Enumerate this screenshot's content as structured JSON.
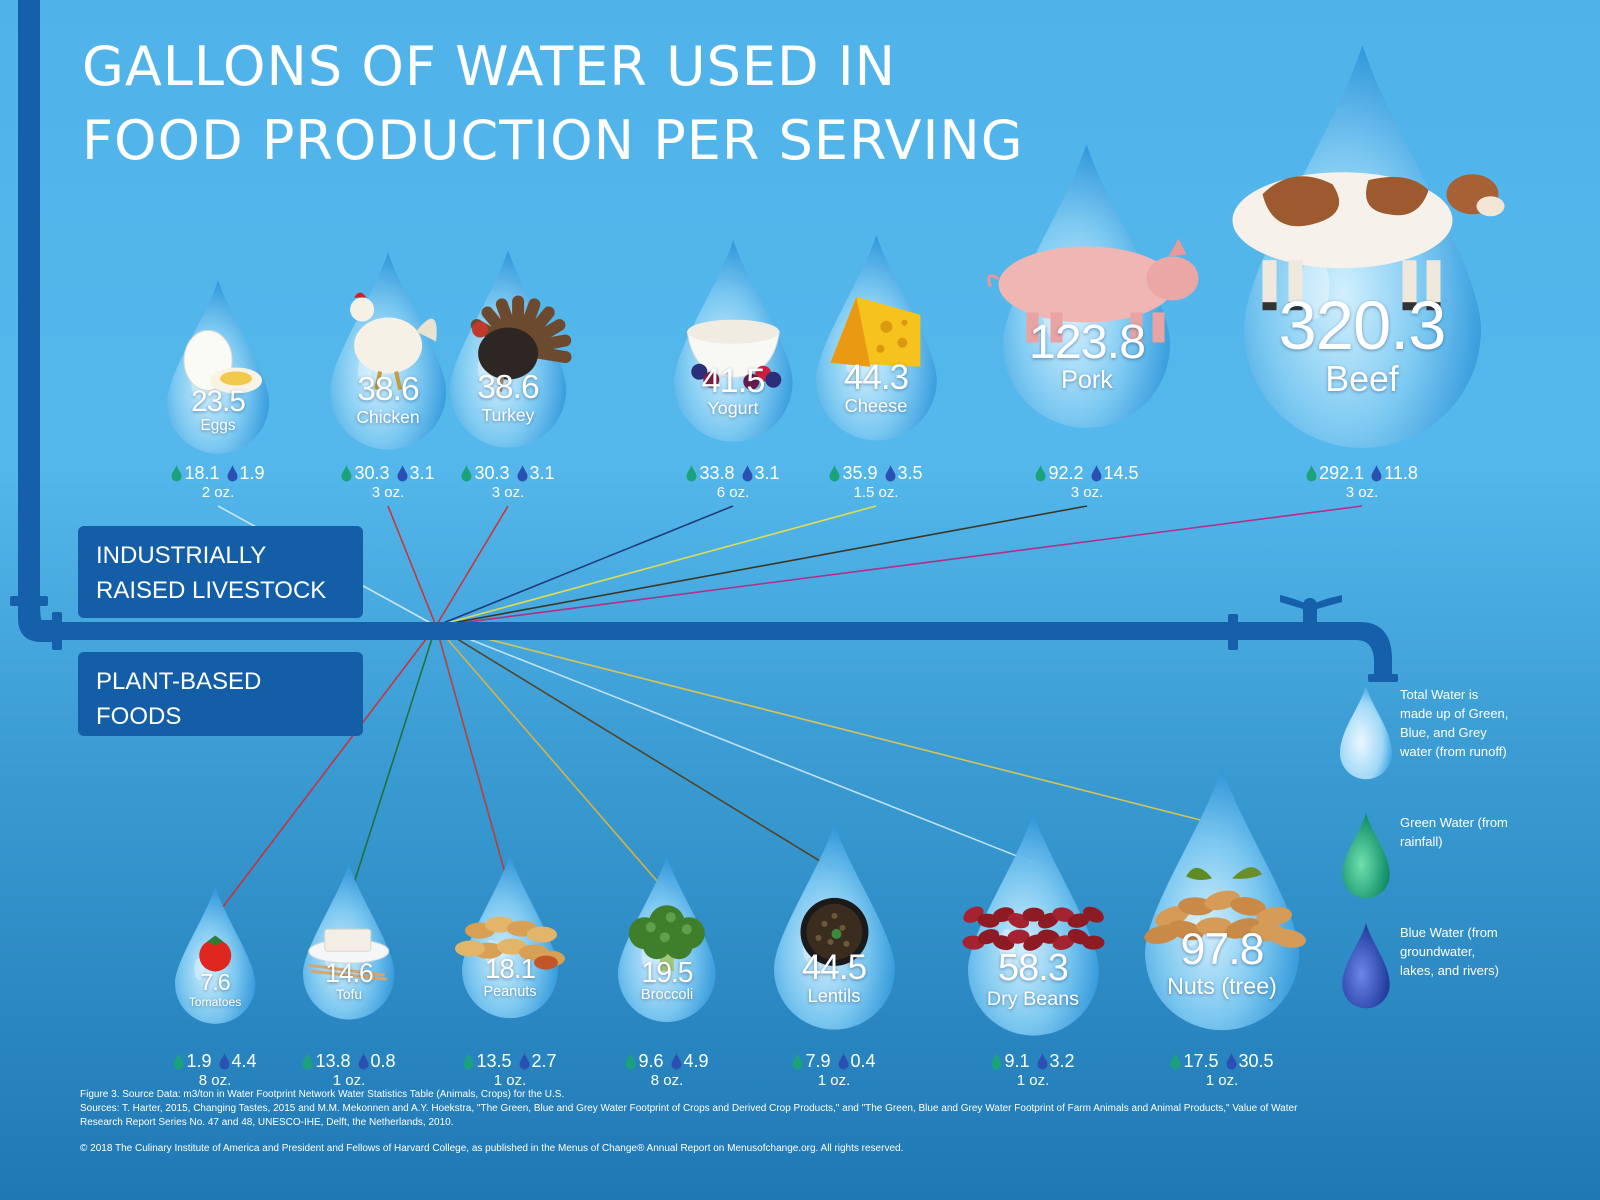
{
  "title": {
    "line1": "GALLONS OF WATER USED IN",
    "line2": "FOOD PRODUCTION PER SERVING"
  },
  "categories": {
    "livestock": {
      "line1": "INDUSTRIALLY",
      "line2": "RAISED LIVESTOCK"
    },
    "plants": {
      "line1": "PLANT-BASED",
      "line2": "FOODS"
    }
  },
  "legend": {
    "total": "Total Water is made up of Green, Blue, and Grey water (from runoff)",
    "green": "Green Water (from rainfall)",
    "blue": "Blue Water (from groundwater, lakes, and rivers)"
  },
  "colors": {
    "background_top": "#4fb3ea",
    "background_bottom": "#1f78b4",
    "pipe": "#1660ab",
    "green_water": "#1aa37a",
    "blue_water": "#2c4fb3"
  },
  "icons": {
    "green_drop": "green-drop-icon",
    "blue_drop": "blue-drop-icon",
    "total_drop": "water-drop-icon",
    "faucet": "faucet-icon"
  },
  "footer": {
    "line1": "Figure 3. Source Data: m3/ton in Water Footprint Network Water Statistics Table (Animals, Crops) for the U.S.",
    "line2": "Sources:  T. Harter, 2015, Changing Tastes, 2015 and M.M. Mekonnen and A.Y. Hoekstra, \"The Green, Blue and Grey Water Footprint of Crops and Derived Crop Products,\" and \"The Green, Blue and Grey Water Footprint of Farm Animals and Animal Products,\" Value of Water",
    "line3": "Research Report Series No. 47 and 48, UNESCO-IHE, Delft, the Netherlands, 2010.",
    "line4": "© 2018 The Culinary Institute of America and President and Fellows of Harvard College, as published in the Menus of Change® Annual Report on Menusofchange.org. All rights reserved."
  },
  "chart_data": {
    "type": "bubble",
    "units": "gallons per serving",
    "groups": [
      {
        "name": "INDUSTRIALLY RAISED LIVESTOCK",
        "items": [
          {
            "food": "Eggs",
            "total": "23.5",
            "green": "18.1",
            "blue": "1.9",
            "serving": "2 oz.",
            "picture": "egg"
          },
          {
            "food": "Chicken",
            "total": "38.6",
            "green": "30.3",
            "blue": "3.1",
            "serving": "3 oz.",
            "picture": "chicken"
          },
          {
            "food": "Turkey",
            "total": "38.6",
            "green": "30.3",
            "blue": "3.1",
            "serving": "3 oz.",
            "picture": "turkey"
          },
          {
            "food": "Yogurt",
            "total": "41.5",
            "green": "33.8",
            "blue": "3.1",
            "serving": "6 oz.",
            "picture": "yogurt"
          },
          {
            "food": "Cheese",
            "total": "44.3",
            "green": "35.9",
            "blue": "3.5",
            "serving": "1.5 oz.",
            "picture": "cheese"
          },
          {
            "food": "Pork",
            "total": "123.8",
            "green": "92.2",
            "blue": "14.5",
            "serving": "3 oz.",
            "picture": "pig"
          },
          {
            "food": "Beef",
            "total": "320.3",
            "green": "292.1",
            "blue": "11.8",
            "serving": "3 oz.",
            "picture": "cow"
          }
        ]
      },
      {
        "name": "PLANT-BASED FOODS",
        "items": [
          {
            "food": "Tomatoes",
            "total": "7.6",
            "green": "1.9",
            "blue": "4.4",
            "serving": "8 oz.",
            "picture": "tomato"
          },
          {
            "food": "Tofu",
            "total": "14.6",
            "green": "13.8",
            "blue": "0.8",
            "serving": "1 oz.",
            "picture": "tofu"
          },
          {
            "food": "Peanuts",
            "total": "18.1",
            "green": "13.5",
            "blue": "2.7",
            "serving": "1 oz.",
            "picture": "peanuts"
          },
          {
            "food": "Broccoli",
            "total": "19.5",
            "green": "9.6",
            "blue": "4.9",
            "serving": "8 oz.",
            "picture": "broccoli"
          },
          {
            "food": "Lentils",
            "total": "44.5",
            "green": "7.9",
            "blue": "0.4",
            "serving": "1 oz.",
            "picture": "lentils"
          },
          {
            "food": "Dry Beans",
            "total": "58.3",
            "green": "9.1",
            "blue": "3.2",
            "serving": "1 oz.",
            "picture": "beans"
          },
          {
            "food": "Nuts (tree)",
            "total": "97.8",
            "green": "17.5",
            "blue": "30.5",
            "serving": "1 oz.",
            "picture": "nuts"
          }
        ]
      }
    ]
  }
}
